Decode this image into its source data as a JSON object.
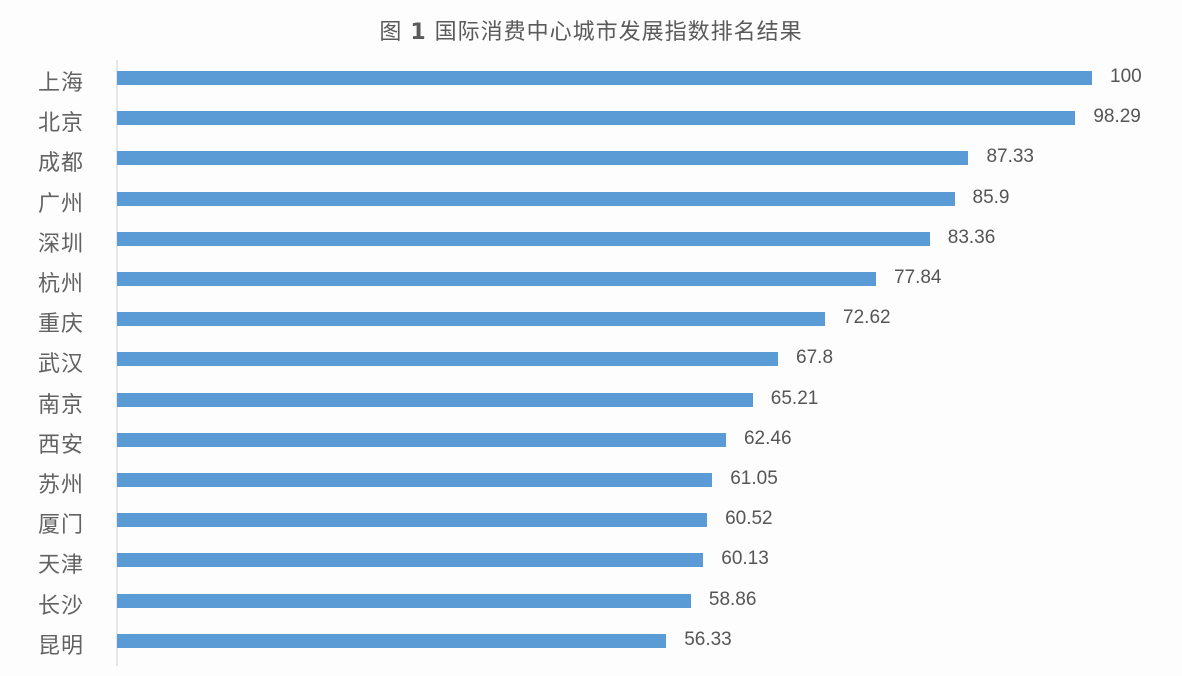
{
  "chart_data": {
    "type": "bar",
    "orientation": "horizontal",
    "title": "图 1 国际消费中心城市发展指数排名结果",
    "title_prefix": "图",
    "title_number": "1",
    "title_text": "国际消费中心城市发展指数排名结果",
    "xlabel": "",
    "ylabel": "",
    "xlim": [
      0,
      100
    ],
    "grid": false,
    "legend": null,
    "data_labels": true,
    "bar_color": "#5b9bd5",
    "categories": [
      "上海",
      "北京",
      "成都",
      "广州",
      "深圳",
      "杭州",
      "重庆",
      "武汉",
      "南京",
      "西安",
      "苏州",
      "厦门",
      "天津",
      "长沙",
      "昆明"
    ],
    "values": [
      100,
      98.29,
      87.33,
      85.9,
      83.36,
      77.84,
      72.62,
      67.8,
      65.21,
      62.46,
      61.05,
      60.52,
      60.13,
      58.86,
      56.33
    ],
    "value_labels": [
      "100",
      "98.29",
      "87.33",
      "85.9",
      "83.36",
      "77.84",
      "72.62",
      "67.8",
      "65.21",
      "62.46",
      "61.05",
      "60.52",
      "60.13",
      "58.86",
      "56.33"
    ]
  }
}
